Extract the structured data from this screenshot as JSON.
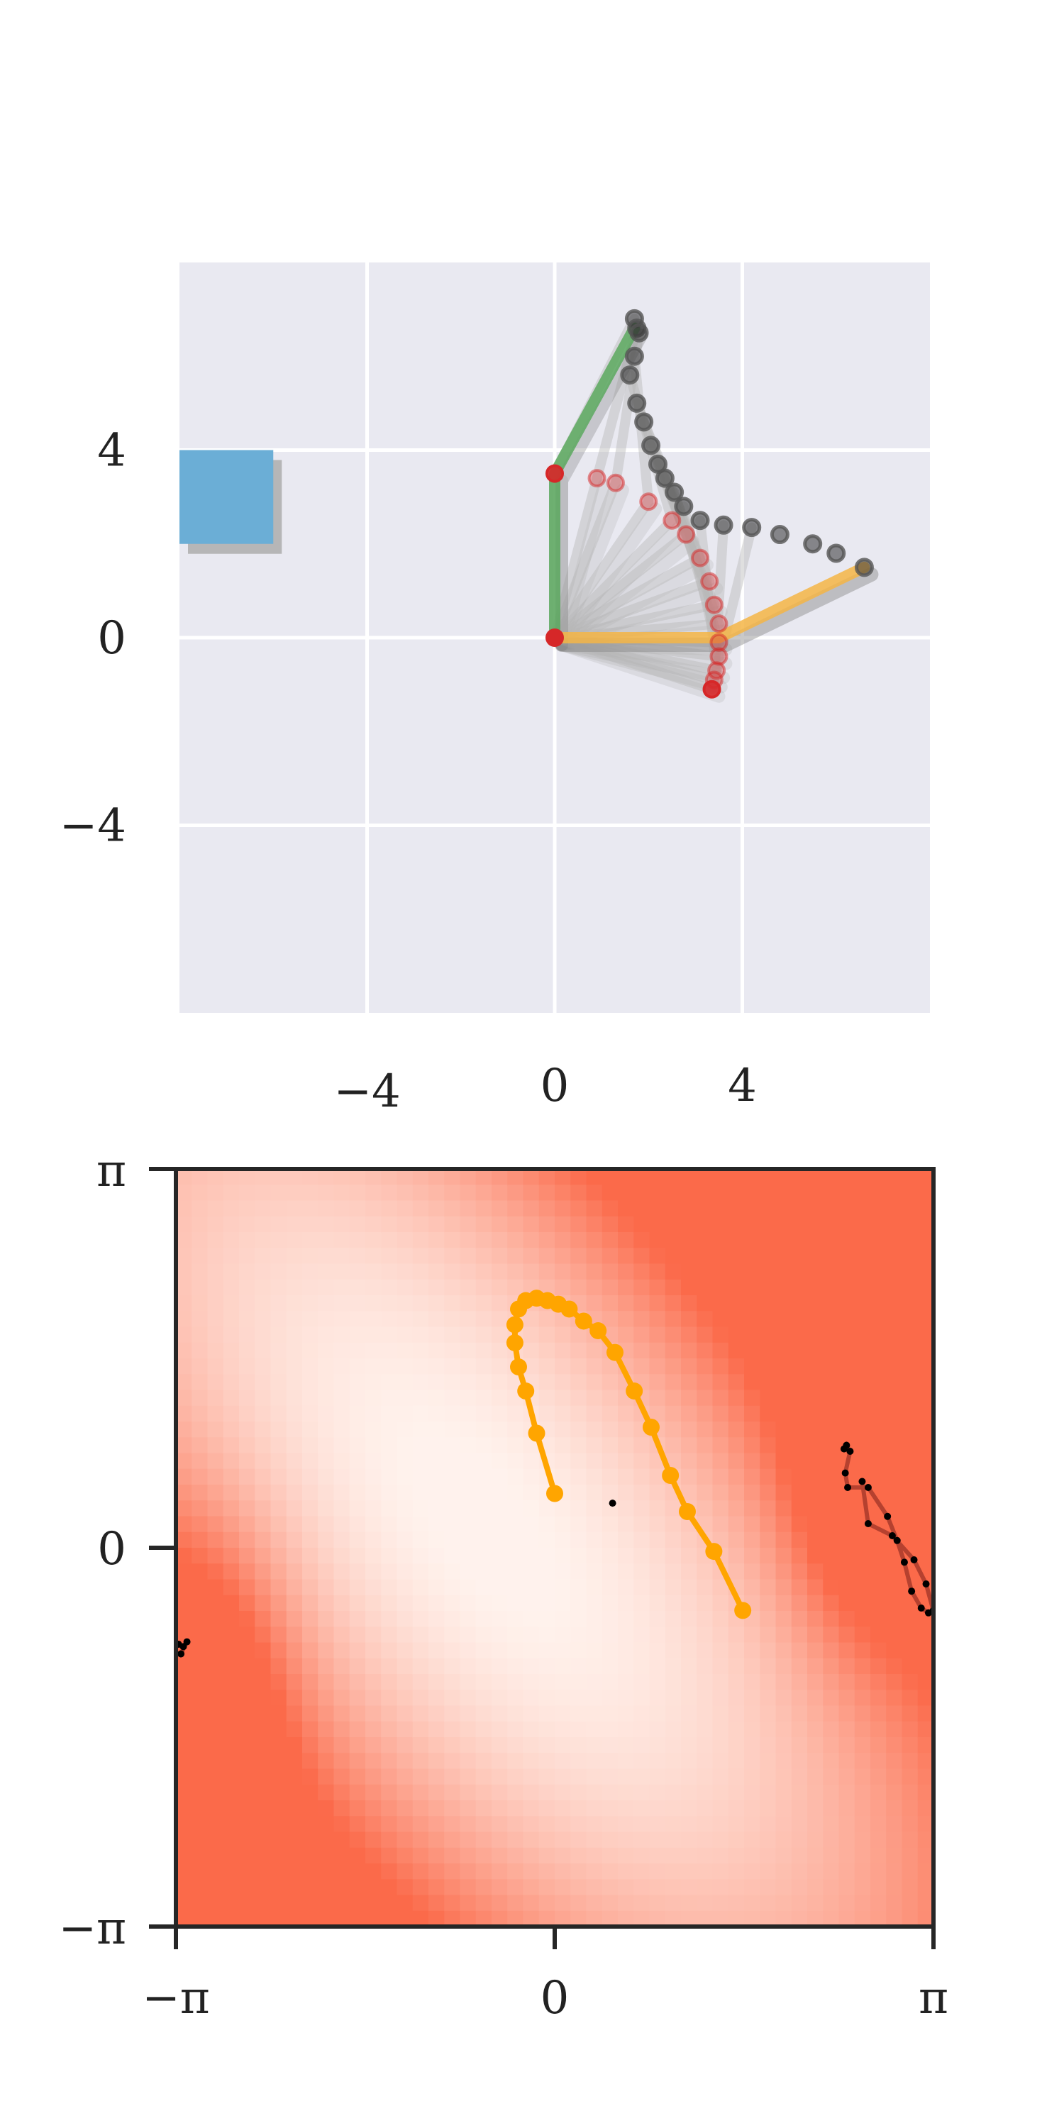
{
  "chart_data": [
    {
      "type": "scatter",
      "title": "",
      "xlabel": "",
      "ylabel": "",
      "xlim": [
        -8,
        8
      ],
      "ylim": [
        -8,
        8
      ],
      "grid": true,
      "x_ticks": [
        -4,
        0,
        4
      ],
      "y_ticks": [
        4,
        0,
        -4
      ],
      "x_tick_labels": [
        "−4",
        "0",
        "4"
      ],
      "y_tick_labels": [
        "4",
        "0",
        "−4"
      ],
      "colors": {
        "background": "#e9e9f1",
        "grid": "#ffffff",
        "square": "#6baed6",
        "square_shadow": "#a9a9a9",
        "arm_initial": "#5aa85e",
        "arm_final": "#f5b545",
        "elbow": "#d62728",
        "tip": "#333333",
        "arm_trace": "#b8b8b8"
      },
      "square": {
        "x": [
          -8,
          -6
        ],
        "y": [
          2,
          4
        ]
      },
      "base": {
        "x": 0,
        "y": 0
      },
      "arm_initial": {
        "elbow": [
          0,
          3.5
        ],
        "tip": [
          1.7,
          6.6
        ]
      },
      "arm_final": {
        "elbow": [
          3.5,
          0
        ],
        "tip": [
          6.6,
          1.5
        ]
      },
      "elbow_trajectory": [
        [
          0,
          3.5
        ],
        [
          0.9,
          3.4
        ],
        [
          1.3,
          3.3
        ],
        [
          2.0,
          2.9
        ],
        [
          2.5,
          2.5
        ],
        [
          2.8,
          2.2
        ],
        [
          3.1,
          1.7
        ],
        [
          3.3,
          1.2
        ],
        [
          3.4,
          0.7
        ],
        [
          3.5,
          0.3
        ],
        [
          3.5,
          -0.1
        ],
        [
          3.5,
          -0.4
        ],
        [
          3.45,
          -0.7
        ],
        [
          3.4,
          -0.9
        ],
        [
          3.35,
          -1.1
        ]
      ],
      "tip_trajectory": [
        [
          1.7,
          6.8
        ],
        [
          1.75,
          6.6
        ],
        [
          1.8,
          6.5
        ],
        [
          1.7,
          6.0
        ],
        [
          1.6,
          5.6
        ],
        [
          1.75,
          5.0
        ],
        [
          1.9,
          4.6
        ],
        [
          2.05,
          4.1
        ],
        [
          2.2,
          3.7
        ],
        [
          2.35,
          3.4
        ],
        [
          2.55,
          3.1
        ],
        [
          2.75,
          2.8
        ],
        [
          3.1,
          2.5
        ],
        [
          3.6,
          2.4
        ],
        [
          4.2,
          2.35
        ],
        [
          4.8,
          2.2
        ],
        [
          5.5,
          2.0
        ],
        [
          6.0,
          1.8
        ],
        [
          6.6,
          1.5
        ]
      ]
    },
    {
      "type": "heatmap",
      "title": "",
      "xlabel": "",
      "ylabel": "",
      "xlim": [
        -3.1416,
        3.1416
      ],
      "ylim": [
        -3.1416,
        3.1416
      ],
      "grid": false,
      "x_tick_labels": [
        "−π",
        "0",
        "π"
      ],
      "y_tick_labels": [
        "π",
        "0",
        "−π"
      ],
      "colors": {
        "colormap_low": "#fff5f0",
        "colormap_high": "#fb6a4a",
        "path": "#ffa500",
        "closed_orbit": "#a83a2a",
        "markers": "#000000"
      },
      "series": [
        {
          "values": [
            [
              0.0,
              0.45
            ],
            [
              -0.15,
              0.95
            ],
            [
              -0.24,
              1.3
            ],
            [
              -0.3,
              1.5
            ],
            [
              -0.33,
              1.7
            ],
            [
              -0.33,
              1.85
            ],
            [
              -0.3,
              1.98
            ],
            [
              -0.24,
              2.05
            ],
            [
              -0.15,
              2.07
            ],
            [
              -0.06,
              2.05
            ],
            [
              0.03,
              2.02
            ],
            [
              0.12,
              1.98
            ],
            [
              0.24,
              1.88
            ],
            [
              0.36,
              1.8
            ],
            [
              0.5,
              1.62
            ],
            [
              0.66,
              1.3
            ],
            [
              0.8,
              1.0
            ],
            [
              0.96,
              0.6
            ],
            [
              1.1,
              0.3
            ],
            [
              1.32,
              -0.03
            ],
            [
              1.56,
              -0.52
            ]
          ]
        },
        {
          "values": [
            [
              2.4,
              0.82
            ],
            [
              2.42,
              0.85
            ],
            [
              2.45,
              0.8
            ],
            [
              2.41,
              0.62
            ],
            [
              2.43,
              0.5
            ],
            [
              2.6,
              0.5
            ],
            [
              2.76,
              0.26
            ],
            [
              2.84,
              0.06
            ],
            [
              2.9,
              -0.12
            ],
            [
              2.96,
              -0.36
            ],
            [
              3.04,
              -0.5
            ],
            [
              3.1,
              -0.54
            ],
            [
              3.14,
              -0.52
            ],
            [
              3.08,
              -0.3
            ],
            [
              2.98,
              -0.1
            ],
            [
              2.8,
              0.1
            ],
            [
              2.6,
              0.2
            ],
            [
              2.55,
              0.55
            ]
          ]
        },
        {
          "values": [
            [
              -3.12,
              -0.8
            ],
            [
              -3.08,
              -0.82
            ],
            [
              -3.05,
              -0.78
            ],
            [
              -3.1,
              -0.88
            ]
          ]
        }
      ],
      "center_marker": [
        0.48,
        0.37
      ]
    }
  ]
}
